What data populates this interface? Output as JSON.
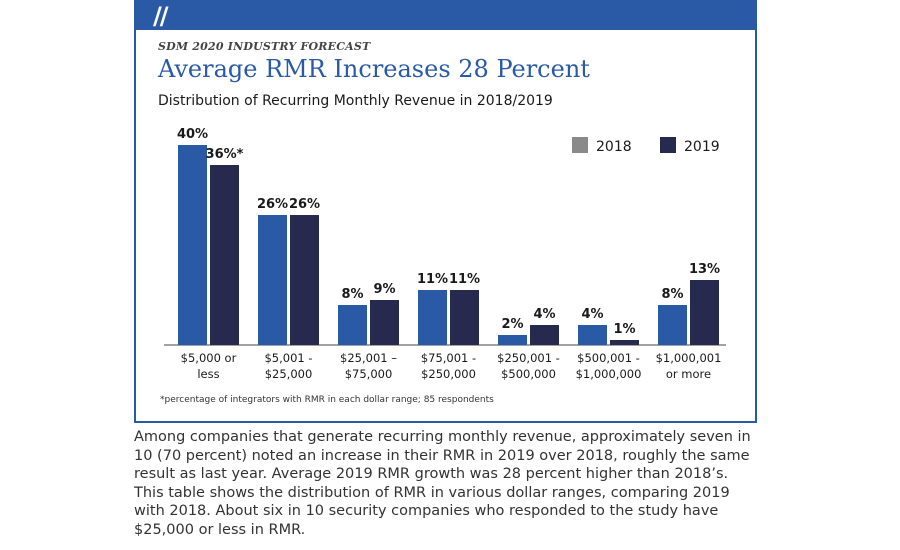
{
  "header": {
    "kicker": "SDM 2020 INDUSTRY FORECAST",
    "title": "Average RMR Increases 28 Percent",
    "subtitle": "Distribution of Recurring Monthly Revenue in 2018/2019"
  },
  "chart_data": {
    "type": "bar",
    "categories": [
      [
        "$5,000 or",
        "less"
      ],
      [
        "$5,001 -",
        "$25,000"
      ],
      [
        "$25,001 –",
        "$75,000"
      ],
      [
        "$75,001 -",
        "$250,000"
      ],
      [
        "$250,001 -",
        "$500,000"
      ],
      [
        "$500,001 -",
        "$1,000,000"
      ],
      [
        "$1,000,001",
        "or more"
      ]
    ],
    "series": [
      {
        "name": "2018",
        "values": [
          40,
          26,
          8,
          11,
          2,
          4,
          8
        ],
        "labels": [
          "40%",
          "26%",
          "8%",
          "11%",
          "2%",
          "4%",
          "8%"
        ]
      },
      {
        "name": "2019",
        "values": [
          36,
          26,
          9,
          11,
          4,
          1,
          13
        ],
        "labels": [
          "36%*",
          "26%",
          "9%",
          "11%",
          "4%",
          "1%",
          "13%"
        ]
      }
    ],
    "ylim": [
      0,
      40
    ],
    "legend_position": "top-right",
    "grid": false,
    "footnote": "*percentage of integrators with RMR in each dollar range; 85 respondents"
  },
  "colors": {
    "series_2018": "#2a5aa6",
    "series_2019": "#262a4e",
    "legend_2018": "#8a8a8a",
    "legend_2019": "#262a4e",
    "accent": "#2a5aa6"
  },
  "caption": "Among companies that generate recurring monthly revenue, approximately seven in 10 (70 percent) noted an increase in their RMR in 2019 over 2018, roughly the same result as last year. Average 2019 RMR growth was 28 percent higher than 2018’s. This table shows the distribution of RMR in various dollar ranges, comparing 2019 with 2018. About six in 10 security companies who responded to the study have $25,000 or less in RMR."
}
